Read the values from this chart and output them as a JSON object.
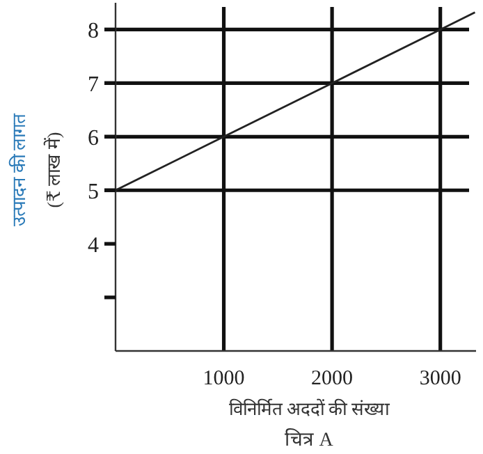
{
  "chart_data": {
    "type": "line",
    "x": [
      0,
      1000,
      2000,
      3000,
      3320
    ],
    "series": [
      {
        "color": "#222222",
        "values": [
          5,
          6,
          7,
          8,
          8.32
        ]
      }
    ],
    "xlim": [
      0,
      3330
    ],
    "ylim": [
      2,
      8.5
    ],
    "xticks": [
      1000,
      2000,
      3000
    ],
    "yticks": [
      {
        "value": 3,
        "label": null
      },
      4,
      5,
      6,
      7,
      8
    ],
    "ylabel": "उत्पादन की लागत\n(₹ लाख में)",
    "xlabel": "विनिर्मित अददों की संख्या",
    "annotations": [
      "चित्र A"
    ],
    "ref_lines": [
      {
        "axis": "y",
        "value": 5,
        "color": "#111111"
      },
      {
        "axis": "y",
        "value": 6,
        "color": "#111111"
      },
      {
        "axis": "y",
        "value": 7,
        "color": "#111111"
      },
      {
        "axis": "y",
        "value": 8,
        "color": "#111111"
      },
      {
        "axis": "x",
        "value": 1000,
        "color": "#111111"
      },
      {
        "axis": "x",
        "value": 2000,
        "color": "#111111"
      },
      {
        "axis": "x",
        "value": 3000,
        "color": "#111111"
      }
    ],
    "marker": "none",
    "line_style": "solid"
  }
}
